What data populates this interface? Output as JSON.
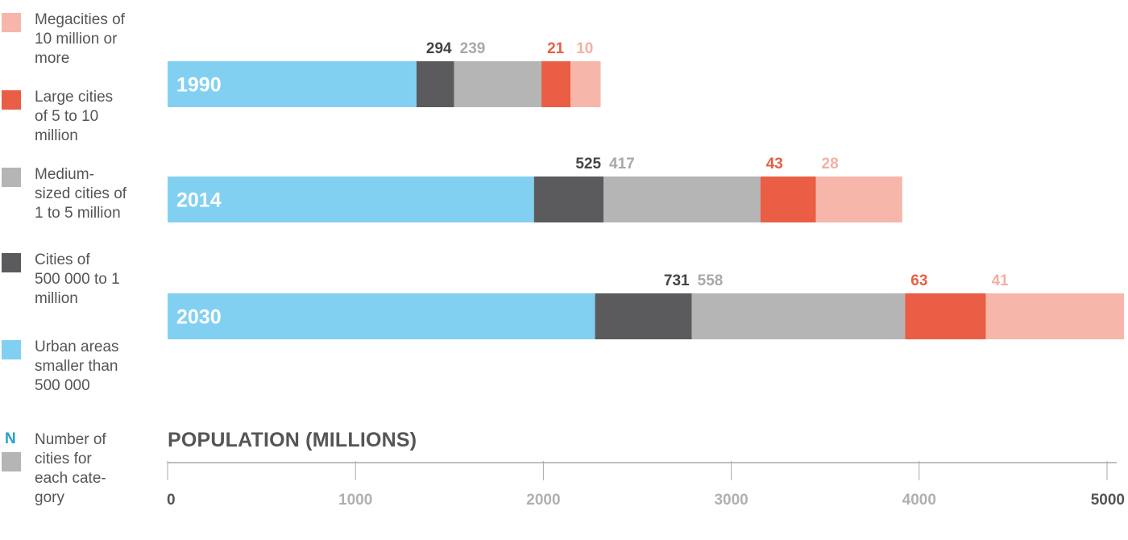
{
  "legend": {
    "items": [
      {
        "key": "mega",
        "text": [
          "Megacities of",
          "10 million or",
          "more"
        ],
        "color": "#f6b7aa"
      },
      {
        "key": "large",
        "text": [
          "Large cities",
          "of 5 to 10",
          "million"
        ],
        "color": "#e95e44"
      },
      {
        "key": "medium",
        "text": [
          "Medium-",
          "sized cities of",
          "1 to 5 million"
        ],
        "color": "#b5b5b5"
      },
      {
        "key": "small",
        "text": [
          "Cities of",
          "500 000 to 1",
          "million"
        ],
        "color": "#5b5b5d"
      },
      {
        "key": "urban",
        "text": [
          "Urban areas",
          "smaller than",
          "500 000"
        ],
        "color": "#82d0f1"
      }
    ],
    "note": {
      "symbol": "N",
      "text": [
        "Number of",
        "cities for",
        "each cate-",
        "gory"
      ],
      "color": "#b5b5b5",
      "symbol_color": "#1fa0d6"
    }
  },
  "chart_data": {
    "type": "bar",
    "orientation": "horizontal",
    "stacked": true,
    "xlabel": "POPULATION (MILLIONS)",
    "xlim": [
      0,
      5000
    ],
    "xticks": [
      0,
      1000,
      2000,
      3000,
      4000,
      5000
    ],
    "categories": [
      "1990",
      "2014",
      "2030"
    ],
    "series": [
      {
        "name": "Urban areas smaller than 500 000",
        "key": "urban",
        "color": "#82d0f1",
        "values": [
          1325,
          1950,
          2275
        ]
      },
      {
        "name": "Cities of 500 000 to 1 million",
        "key": "small",
        "color": "#5b5b5d",
        "values": [
          200,
          370,
          515
        ]
      },
      {
        "name": "Medium-sized cities of 1 to 5 million",
        "key": "medium",
        "color": "#b5b5b5",
        "values": [
          465,
          835,
          1135
        ]
      },
      {
        "name": "Large cities of 5 to 10 million",
        "key": "large",
        "color": "#e95e44",
        "values": [
          155,
          295,
          430
        ]
      },
      {
        "name": "Megacities of 10 million or more",
        "key": "mega",
        "color": "#f6b7aa",
        "values": [
          160,
          460,
          735
        ]
      }
    ],
    "city_counts": [
      {
        "year": "1990",
        "counts": [
          {
            "key": "small",
            "value": "294"
          },
          {
            "key": "medium",
            "value": "239"
          },
          {
            "key": "large",
            "value": "21"
          },
          {
            "key": "mega",
            "value": "10"
          }
        ]
      },
      {
        "year": "2014",
        "counts": [
          {
            "key": "small",
            "value": "525"
          },
          {
            "key": "medium",
            "value": "417"
          },
          {
            "key": "large",
            "value": "43"
          },
          {
            "key": "mega",
            "value": "28"
          }
        ]
      },
      {
        "year": "2030",
        "counts": [
          {
            "key": "small",
            "value": "731"
          },
          {
            "key": "medium",
            "value": "558"
          },
          {
            "key": "large",
            "value": "63"
          },
          {
            "key": "mega",
            "value": "41"
          }
        ]
      }
    ],
    "count_label_colors": {
      "small": "#444444",
      "medium": "#a8a8a8",
      "large": "#e95e44",
      "mega": "#f4b0a2"
    },
    "tick_colors": {
      "edge": "#555555",
      "inner": "#b0b0b0"
    }
  }
}
